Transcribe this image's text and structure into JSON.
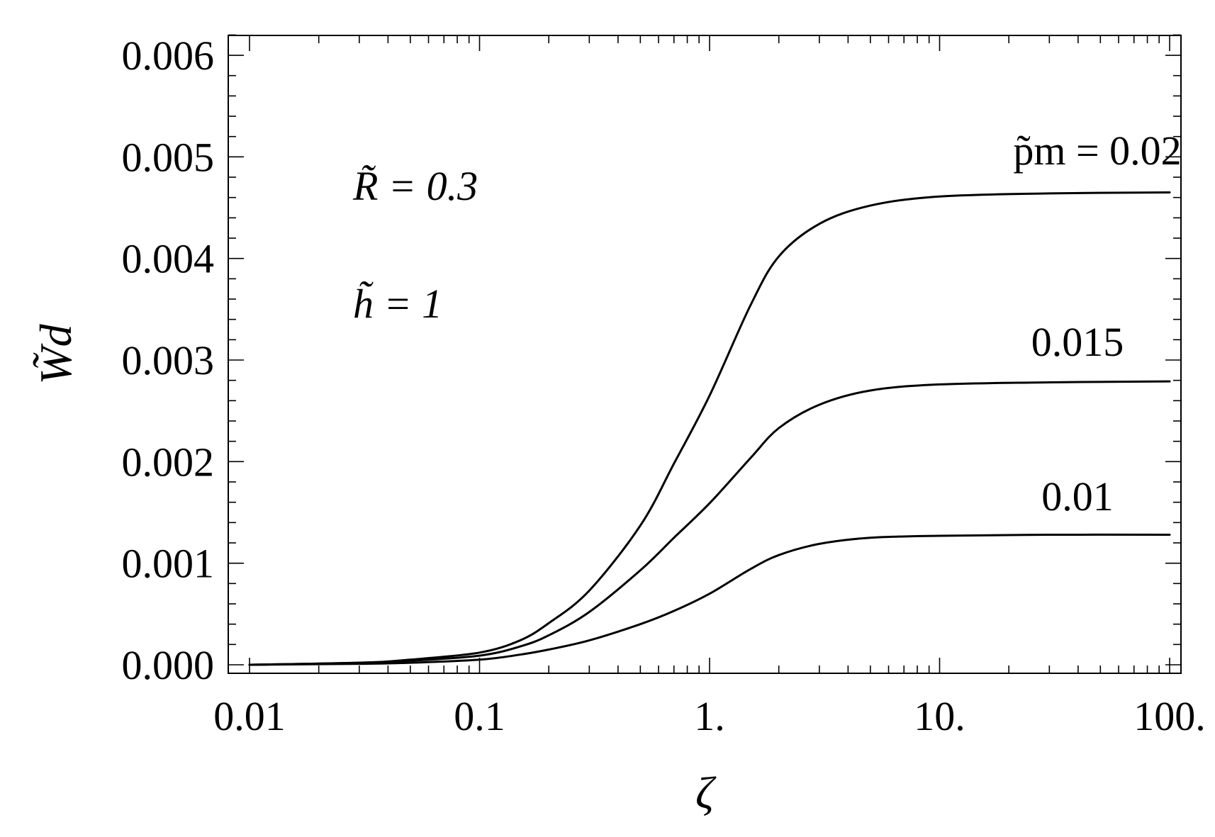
{
  "chart_data": {
    "type": "line",
    "x_scale": "log",
    "xlim": [
      0.01,
      100
    ],
    "ylim": [
      0,
      0.0062
    ],
    "xlabel": "ζ",
    "ylabel": "W̃d",
    "x_ticks": [
      "0.01",
      "0.1",
      "1.",
      "10.",
      "100."
    ],
    "y_ticks": [
      "0.000",
      "0.001",
      "0.002",
      "0.003",
      "0.004",
      "0.005",
      "0.006"
    ],
    "grid": false,
    "annotations": {
      "R_label": "R̃ = 0.3",
      "h_label": "h̃ = 1"
    },
    "series": [
      {
        "name": "p̃m = 0.02",
        "x": [
          0.01,
          0.03,
          0.05,
          0.1,
          0.15,
          0.2,
          0.3,
          0.5,
          0.7,
          1,
          1.5,
          2,
          3,
          5,
          10,
          30,
          100
        ],
        "y": [
          0,
          2e-05,
          5e-05,
          0.00012,
          0.00024,
          0.00041,
          0.00073,
          0.00137,
          0.00198,
          0.00265,
          0.00353,
          0.00402,
          0.00434,
          0.00452,
          0.00461,
          0.00464,
          0.00465
        ]
      },
      {
        "name": "0.015",
        "x": [
          0.01,
          0.03,
          0.05,
          0.1,
          0.15,
          0.2,
          0.3,
          0.5,
          0.7,
          1,
          1.5,
          2,
          3,
          5,
          10,
          30,
          100
        ],
        "y": [
          0,
          2e-05,
          4e-05,
          9e-05,
          0.00018,
          0.00029,
          0.00052,
          0.00093,
          0.00125,
          0.00159,
          0.00203,
          0.00233,
          0.00256,
          0.0027,
          0.00276,
          0.00278,
          0.00279
        ]
      },
      {
        "name": "0.01",
        "x": [
          0.01,
          0.03,
          0.05,
          0.1,
          0.15,
          0.2,
          0.3,
          0.5,
          0.7,
          1,
          1.5,
          2,
          3,
          5,
          10,
          30,
          100
        ],
        "y": [
          0,
          1e-05,
          2e-05,
          5e-05,
          0.0001,
          0.00015,
          0.00024,
          0.0004,
          0.00053,
          0.0007,
          0.00094,
          0.00108,
          0.00119,
          0.00125,
          0.00127,
          0.00128,
          0.00128
        ]
      }
    ]
  }
}
